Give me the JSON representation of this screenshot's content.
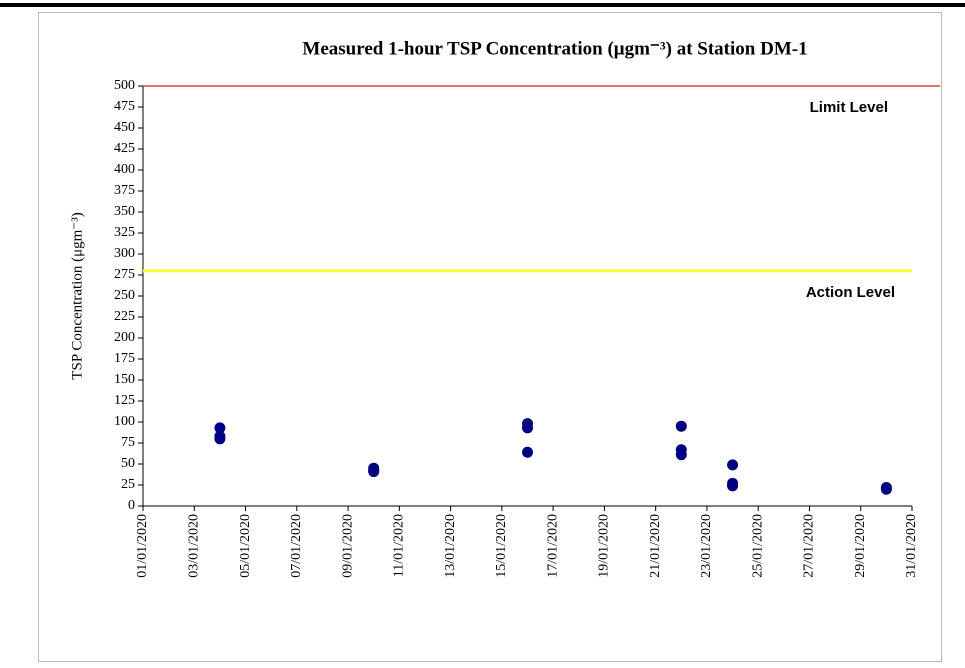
{
  "chart_data": {
    "type": "scatter",
    "title": "Measured 1-hour TSP Concentration (μgm⁻³) at Station DM-1",
    "y_label": "TSP Concentration (μgm⁻³)",
    "series": [
      {
        "name": "TSP",
        "color": "#000080",
        "x": [
          "04/01/2020",
          "04/01/2020",
          "04/01/2020",
          "10/01/2020",
          "10/01/2020",
          "10/01/2020",
          "16/01/2020",
          "16/01/2020",
          "16/01/2020",
          "22/01/2020",
          "22/01/2020",
          "22/01/2020",
          "24/01/2020",
          "24/01/2020",
          "24/01/2020",
          "30/01/2020",
          "30/01/2020"
        ],
        "values": [
          93,
          83,
          80,
          45,
          42,
          41,
          98,
          93,
          64,
          95,
          67,
          61,
          49,
          27,
          24,
          22,
          20
        ]
      }
    ],
    "reference_lines": [
      {
        "label": "Limit Level",
        "value": 500,
        "color": "#e0423a"
      },
      {
        "label": "Action Level",
        "value": 280,
        "color": "#ffff33"
      }
    ],
    "xlim": [
      "01/01/2020",
      "31/01/2020"
    ],
    "xticks": [
      "01/01/2020",
      "03/01/2020",
      "05/01/2020",
      "07/01/2020",
      "09/01/2020",
      "11/01/2020",
      "13/01/2020",
      "15/01/2020",
      "17/01/2020",
      "19/01/2020",
      "21/01/2020",
      "23/01/2020",
      "25/01/2020",
      "27/01/2020",
      "29/01/2020",
      "31/01/2020"
    ],
    "ylim": [
      0,
      500
    ],
    "yticks": [
      0,
      25,
      50,
      75,
      100,
      125,
      150,
      175,
      200,
      225,
      250,
      275,
      300,
      325,
      350,
      375,
      400,
      425,
      450,
      475,
      500
    ]
  }
}
